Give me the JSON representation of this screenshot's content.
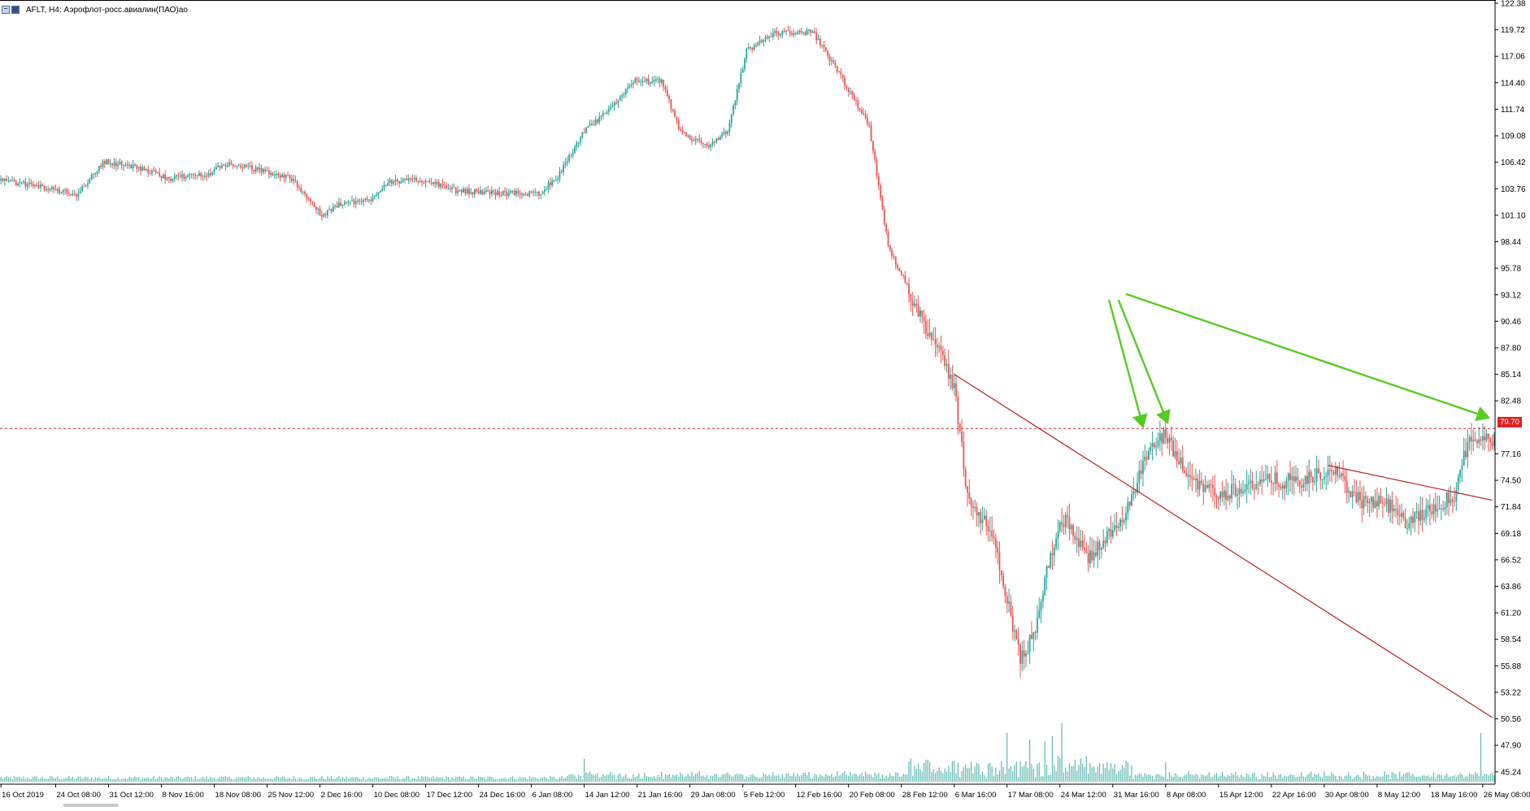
{
  "window": {
    "symbol_title": "AFLT, H4:  Аэрофлот-росс.авиалин(ПАО)ао"
  },
  "colors": {
    "bull": "#26a69a",
    "bear": "#ef5350",
    "volume": "#5fb8b0",
    "axis": "#000000",
    "trendline": "#b22222",
    "arrow": "#55cc22",
    "price_line": "#e02020"
  },
  "icons": [
    "chart-window-icon",
    "chart-bars-icon"
  ],
  "current_price_label": "79.70",
  "chart_data": {
    "type": "candlestick",
    "title": "AFLT, H4:  Аэрофлот-росс.авиалин(ПАО)ао",
    "timeframe": "H4",
    "ylim": [
      44.0,
      122.38
    ],
    "grid": false,
    "y_ticks": [
      "122.38",
      "119.72",
      "117.06",
      "114.40",
      "111.74",
      "109.08",
      "106.42",
      "103.76",
      "101.10",
      "98.44",
      "95.78",
      "93.12",
      "90.46",
      "87.80",
      "85.14",
      "82.48",
      "77.16",
      "74.50",
      "71.84",
      "69.18",
      "66.52",
      "63.86",
      "61.20",
      "58.54",
      "55.88",
      "53.22",
      "50.56",
      "47.90",
      "45.24"
    ],
    "x_ticks": [
      "16 Oct 2019",
      "24 Oct 08:00",
      "31 Oct 12:00",
      "8 Nov 16:00",
      "18 Nov 08:00",
      "25 Nov 12:00",
      "2 Dec 16:00",
      "10 Dec 08:00",
      "17 Dec 12:00",
      "24 Dec 16:00",
      "6 Jan 08:00",
      "14 Jan 12:00",
      "21 Jan 16:00",
      "29 Jan 08:00",
      "5 Feb 12:00",
      "12 Feb 16:00",
      "20 Feb 08:00",
      "28 Feb 12:00",
      "6 Mar 16:00",
      "17 Mar 08:00",
      "24 Mar 12:00",
      "31 Mar 16:00",
      "8 Apr 08:00",
      "15 Apr 12:00",
      "22 Apr 16:00",
      "30 Apr 08:00",
      "8 May 12:00",
      "18 May 16:00",
      "26 May 08:00"
    ],
    "x_ticks_index": [
      0,
      29,
      57,
      85,
      113,
      141,
      169,
      197,
      225,
      253,
      281,
      309,
      337,
      365,
      393,
      421,
      449,
      477,
      505,
      533,
      561,
      589,
      617,
      645,
      673,
      701,
      729,
      757,
      785
    ],
    "current_price": 79.7,
    "price_path": [
      [
        0,
        104.6
      ],
      [
        20,
        104.0
      ],
      [
        40,
        103.2
      ],
      [
        55,
        106.5
      ],
      [
        70,
        106.0
      ],
      [
        90,
        104.8
      ],
      [
        110,
        105.3
      ],
      [
        120,
        106.3
      ],
      [
        140,
        105.5
      ],
      [
        155,
        104.7
      ],
      [
        170,
        101.0
      ],
      [
        180,
        102.3
      ],
      [
        195,
        102.6
      ],
      [
        205,
        104.5
      ],
      [
        225,
        104.6
      ],
      [
        240,
        103.6
      ],
      [
        255,
        103.4
      ],
      [
        270,
        103.3
      ],
      [
        285,
        103.3
      ],
      [
        295,
        105.0
      ],
      [
        309,
        109.5
      ],
      [
        322,
        111.6
      ],
      [
        335,
        114.6
      ],
      [
        350,
        114.5
      ],
      [
        360,
        109.4
      ],
      [
        375,
        108.0
      ],
      [
        385,
        109.5
      ],
      [
        395,
        117.6
      ],
      [
        410,
        119.4
      ],
      [
        430,
        119.5
      ],
      [
        445,
        115.0
      ],
      [
        460,
        110.0
      ],
      [
        470,
        98.0
      ],
      [
        480,
        94.0
      ],
      [
        495,
        88.0
      ],
      [
        505,
        84.0
      ],
      [
        512,
        73.0
      ],
      [
        525,
        69.0
      ],
      [
        533,
        62.5
      ],
      [
        540,
        56.5
      ],
      [
        547,
        59.0
      ],
      [
        553,
        64.5
      ],
      [
        561,
        70.5
      ],
      [
        567,
        70.0
      ],
      [
        575,
        66.5
      ],
      [
        583,
        68.0
      ],
      [
        590,
        70.0
      ],
      [
        598,
        72.0
      ],
      [
        608,
        77.5
      ],
      [
        617,
        79.0
      ],
      [
        628,
        75.0
      ],
      [
        645,
        73.0
      ],
      [
        660,
        74.0
      ],
      [
        675,
        74.5
      ],
      [
        690,
        74.3
      ],
      [
        705,
        75.6
      ],
      [
        720,
        72.5
      ],
      [
        735,
        72.0
      ],
      [
        745,
        70.0
      ],
      [
        758,
        71.8
      ],
      [
        770,
        73.0
      ],
      [
        778,
        79.0
      ],
      [
        790,
        78.5
      ]
    ],
    "volume_spikes": [
      [
        309,
        0.35
      ],
      [
        533,
        0.75
      ],
      [
        545,
        0.65
      ],
      [
        553,
        0.62
      ],
      [
        557,
        0.7
      ],
      [
        562,
        0.9
      ],
      [
        575,
        0.4
      ],
      [
        617,
        0.3
      ],
      [
        784,
        0.75
      ]
    ],
    "trendlines": [
      {
        "from": [
          505,
          85.14
        ],
        "to": [
          790,
          50.7
        ]
      },
      {
        "from": [
          703,
          76.0
        ],
        "to": [
          790,
          72.5
        ]
      }
    ],
    "arrows": [
      {
        "from": [
          587,
          92.6
        ],
        "to": [
          605,
          79.9
        ]
      },
      {
        "from": [
          592,
          92.6
        ],
        "to": [
          618,
          80.3
        ]
      },
      {
        "from": [
          596,
          93.2
        ],
        "to": [
          788,
          80.8
        ]
      }
    ]
  }
}
